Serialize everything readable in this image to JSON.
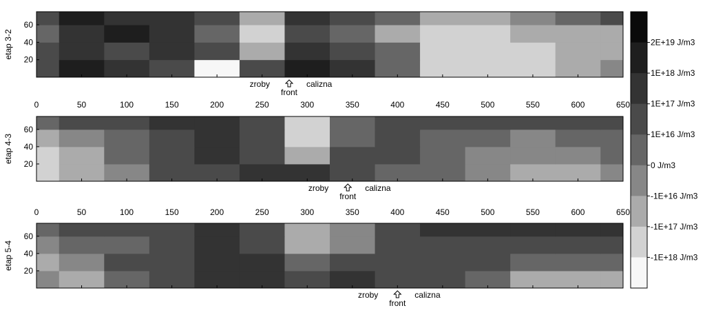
{
  "chart_data": [
    {
      "type": "heatmap",
      "ylabel": "etap 3-2",
      "x_ticks": [
        0,
        50,
        100,
        150,
        200,
        250,
        300,
        350,
        400,
        450,
        500,
        550,
        600,
        650
      ],
      "y_ticks": [
        20,
        40,
        60
      ],
      "xlim": [
        0,
        650
      ],
      "ylim": [
        0,
        75
      ],
      "annotations": {
        "left": "zroby",
        "center": "front",
        "right": "calizna"
      },
      "front_x": 280,
      "x": [
        0,
        50,
        100,
        150,
        200,
        250,
        300,
        350,
        400,
        450,
        500,
        550,
        600,
        650
      ],
      "y": [
        10,
        30,
        50,
        70
      ],
      "z": [
        [
          3,
          1,
          2,
          3,
          8,
          3,
          1,
          2,
          4,
          7,
          7,
          7,
          6,
          5
        ],
        [
          3,
          2,
          3,
          2,
          3,
          6,
          2,
          3,
          4,
          7,
          7,
          7,
          6,
          6
        ],
        [
          4,
          2,
          1,
          2,
          4,
          7,
          3,
          4,
          6,
          7,
          7,
          6,
          6,
          6
        ],
        [
          3,
          1,
          2,
          2,
          3,
          6,
          2,
          3,
          4,
          6,
          6,
          5,
          4,
          3
        ]
      ]
    },
    {
      "type": "heatmap",
      "ylabel": "etap 4-3",
      "x_ticks": [
        0,
        50,
        100,
        150,
        200,
        250,
        300,
        350,
        400,
        450,
        500,
        550,
        600,
        650
      ],
      "y_ticks": [
        20,
        40,
        60
      ],
      "xlim": [
        0,
        650
      ],
      "ylim": [
        0,
        75
      ],
      "annotations": {
        "left": "zroby",
        "center": "front",
        "right": "calizna"
      },
      "front_x": 345,
      "x": [
        0,
        50,
        100,
        150,
        200,
        250,
        300,
        350,
        400,
        450,
        500,
        550,
        600,
        650
      ],
      "y": [
        10,
        30,
        50,
        70
      ],
      "z": [
        [
          7,
          6,
          5,
          3,
          3,
          2,
          2,
          3,
          4,
          4,
          5,
          6,
          6,
          5
        ],
        [
          7,
          6,
          4,
          3,
          2,
          3,
          6,
          3,
          3,
          4,
          5,
          5,
          5,
          4
        ],
        [
          6,
          5,
          4,
          3,
          2,
          3,
          7,
          4,
          3,
          4,
          4,
          5,
          4,
          4
        ],
        [
          4,
          3,
          3,
          2,
          2,
          3,
          7,
          4,
          3,
          3,
          3,
          3,
          3,
          3
        ]
      ]
    },
    {
      "type": "heatmap",
      "ylabel": "etap 5-4",
      "x_ticks": [
        0,
        50,
        100,
        150,
        200,
        250,
        300,
        350,
        400,
        450,
        500,
        550,
        600,
        650
      ],
      "y_ticks": [
        20,
        40,
        60
      ],
      "xlim": [
        0,
        650
      ],
      "ylim": [
        0,
        75
      ],
      "annotations": {
        "left": "zroby",
        "center": "front",
        "right": "calizna"
      },
      "front_x": 400,
      "x": [
        0,
        50,
        100,
        150,
        200,
        250,
        300,
        350,
        400,
        450,
        500,
        550,
        600,
        650
      ],
      "y": [
        10,
        30,
        50,
        70
      ],
      "z": [
        [
          5,
          6,
          4,
          3,
          2,
          2,
          3,
          2,
          3,
          3,
          4,
          6,
          6,
          6
        ],
        [
          6,
          5,
          3,
          3,
          2,
          2,
          4,
          3,
          3,
          3,
          3,
          4,
          4,
          4
        ],
        [
          5,
          4,
          4,
          3,
          2,
          3,
          6,
          5,
          3,
          3,
          3,
          3,
          3,
          3
        ],
        [
          4,
          3,
          3,
          3,
          2,
          3,
          6,
          5,
          3,
          2,
          2,
          2,
          2,
          2
        ]
      ]
    }
  ],
  "colorbar": {
    "labels": [
      "2E+19 J/m3",
      "1E+18 J/m3",
      "1E+17 J/m3",
      "1E+16 J/m3",
      "0 J/m3",
      "-1E+16 J/m3",
      "-1E+17 J/m3",
      "-1E+18 J/m3"
    ],
    "colors": [
      "#0a0a0a",
      "#1e1e1e",
      "#333333",
      "#4a4a4a",
      "#666666",
      "#878787",
      "#ababab",
      "#d2d2d2",
      "#f7f7f7"
    ]
  }
}
